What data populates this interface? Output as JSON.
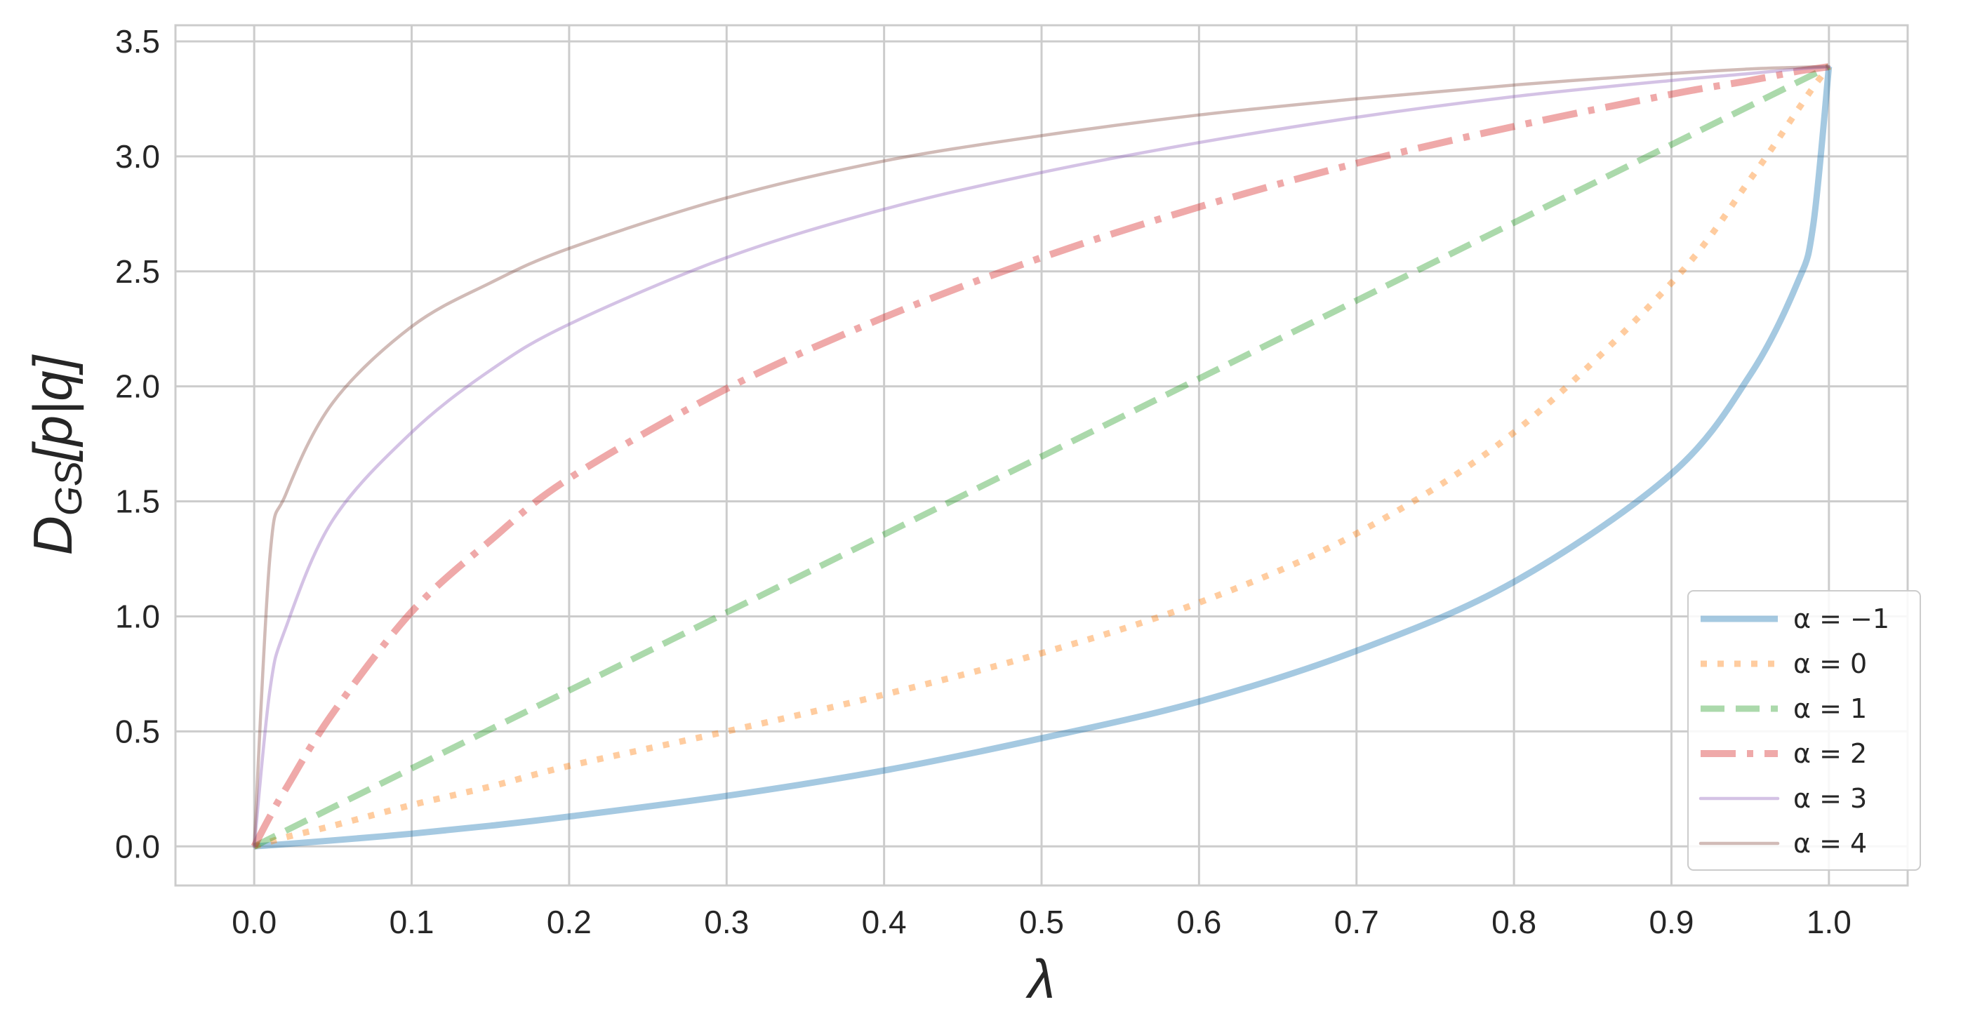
{
  "chart_data": {
    "type": "line",
    "xlabel": "λ",
    "ylabel": "D_GS[p|q]",
    "ylabel_main": "D",
    "ylabel_sub": "GS",
    "ylabel_tail": "[p|q]",
    "xlim": [
      -0.05,
      1.05
    ],
    "ylim": [
      -0.17,
      3.57
    ],
    "xticks": [
      "0.0",
      "0.1",
      "0.2",
      "0.3",
      "0.4",
      "0.5",
      "0.6",
      "0.7",
      "0.8",
      "0.9",
      "1.0"
    ],
    "yticks": [
      "0.0",
      "0.5",
      "1.0",
      "1.5",
      "2.0",
      "2.5",
      "3.0",
      "3.5"
    ],
    "grid": true,
    "legend_position": "lower right",
    "x": [
      0.0,
      0.01,
      0.02,
      0.05,
      0.1,
      0.15,
      0.2,
      0.3,
      0.4,
      0.5,
      0.6,
      0.7,
      0.8,
      0.9,
      0.95,
      0.98,
      0.99,
      1.0
    ],
    "series": [
      {
        "name": "α = −1",
        "color": "#1f77b4",
        "style": "solid-thick",
        "values": [
          0.0,
          0.005,
          0.01,
          0.026,
          0.055,
          0.09,
          0.13,
          0.22,
          0.33,
          0.47,
          0.63,
          0.85,
          1.15,
          1.62,
          2.05,
          2.45,
          2.7,
          3.39
        ]
      },
      {
        "name": "α = 0",
        "color": "#ff7f0e",
        "style": "dotted",
        "values": [
          0.0,
          0.02,
          0.04,
          0.09,
          0.18,
          0.26,
          0.35,
          0.5,
          0.66,
          0.84,
          1.06,
          1.36,
          1.8,
          2.45,
          2.9,
          3.2,
          3.3,
          3.39
        ]
      },
      {
        "name": "α = 1",
        "color": "#2ca02c",
        "style": "dashed",
        "values": [
          0.0,
          0.034,
          0.068,
          0.17,
          0.339,
          0.509,
          0.678,
          1.017,
          1.356,
          1.695,
          2.034,
          2.373,
          2.712,
          3.051,
          3.22,
          3.322,
          3.356,
          3.39
        ]
      },
      {
        "name": "α = 2",
        "color": "#d62728",
        "style": "dashdot",
        "values": [
          0.0,
          0.13,
          0.25,
          0.58,
          1.02,
          1.33,
          1.6,
          1.99,
          2.3,
          2.56,
          2.78,
          2.97,
          3.13,
          3.27,
          3.33,
          3.37,
          3.38,
          3.39
        ]
      },
      {
        "name": "α = 3",
        "color": "#9467bd",
        "style": "solid",
        "values": [
          0.0,
          0.68,
          0.95,
          1.42,
          1.8,
          2.07,
          2.27,
          2.56,
          2.77,
          2.93,
          3.06,
          3.17,
          3.26,
          3.33,
          3.36,
          3.38,
          3.385,
          3.39
        ]
      },
      {
        "name": "α = 4",
        "color": "#8c564b",
        "style": "solid",
        "values": [
          0.0,
          1.26,
          1.53,
          1.93,
          2.26,
          2.45,
          2.6,
          2.82,
          2.98,
          3.09,
          3.18,
          3.25,
          3.31,
          3.36,
          3.38,
          3.387,
          3.389,
          3.39
        ]
      }
    ]
  }
}
